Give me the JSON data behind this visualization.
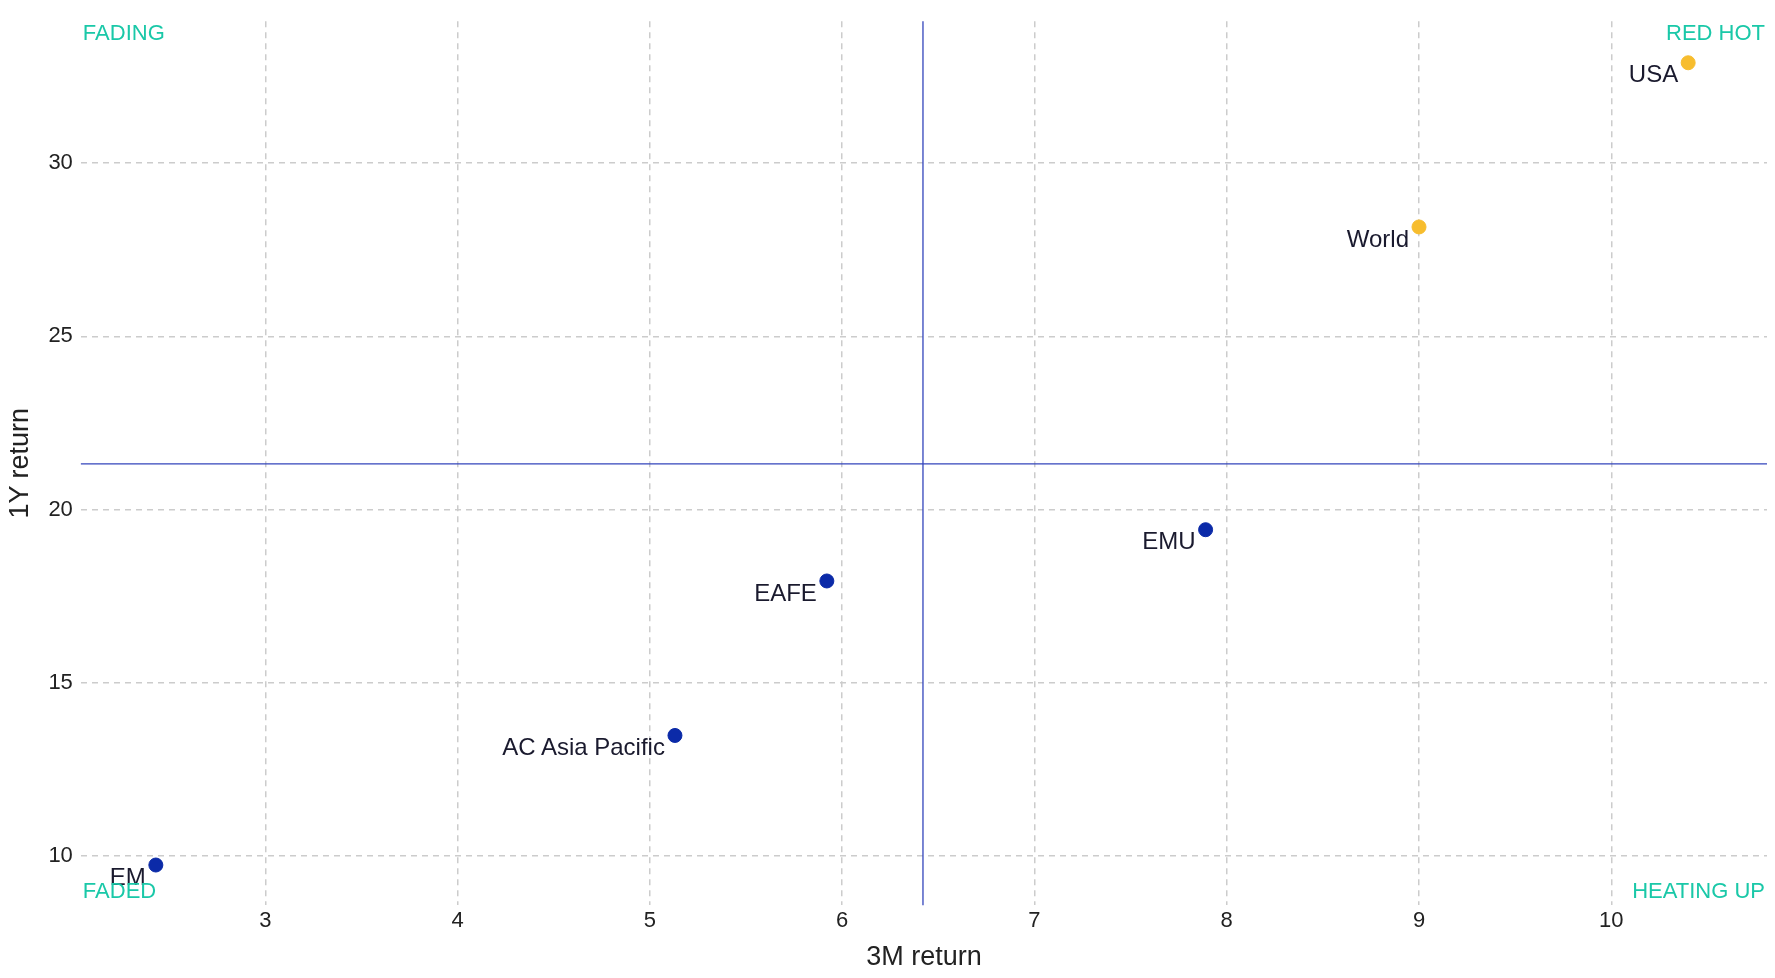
{
  "chart_data": {
    "type": "scatter",
    "xlabel": "3M return",
    "ylabel": "1Y return",
    "series": [
      {
        "color": "#0b2aa8",
        "x": [
          7.89,
          5.92,
          5.13,
          2.43
        ],
        "values": [
          19.42,
          17.94,
          13.48,
          9.74
        ]
      },
      {
        "color": "#f7bd2e",
        "x": [
          10.4,
          9.0
        ],
        "values": [
          32.9,
          28.16
        ]
      }
    ],
    "xlim": [
      2.04,
      10.81
    ],
    "xticks": [
      3,
      4,
      5,
      6,
      7,
      8,
      9,
      10
    ],
    "ylim": [
      8.58,
      34.1
    ],
    "yticks": [
      10,
      15,
      20,
      25,
      30
    ],
    "grid": true,
    "legend": false,
    "marker": "circle",
    "ref_lines": [
      {
        "axis": "x",
        "value": 6.42,
        "color": "#3344bb"
      },
      {
        "axis": "y",
        "value": 21.32,
        "color": "#3344bb"
      }
    ],
    "annotations": [
      {
        "text": "EMU",
        "x": 7.89,
        "y": 19.42
      },
      {
        "text": "EAFE",
        "x": 5.92,
        "y": 17.94
      },
      {
        "text": "AC Asia Pacific",
        "x": 5.13,
        "y": 13.48
      },
      {
        "text": "EM",
        "x": 2.43,
        "y": 9.74
      },
      {
        "text": "USA",
        "x": 10.4,
        "y": 32.9
      },
      {
        "text": "World",
        "x": 9.0,
        "y": 28.16
      },
      "FADING",
      "RED HOT",
      "FADED",
      "HEATING UP"
    ]
  }
}
